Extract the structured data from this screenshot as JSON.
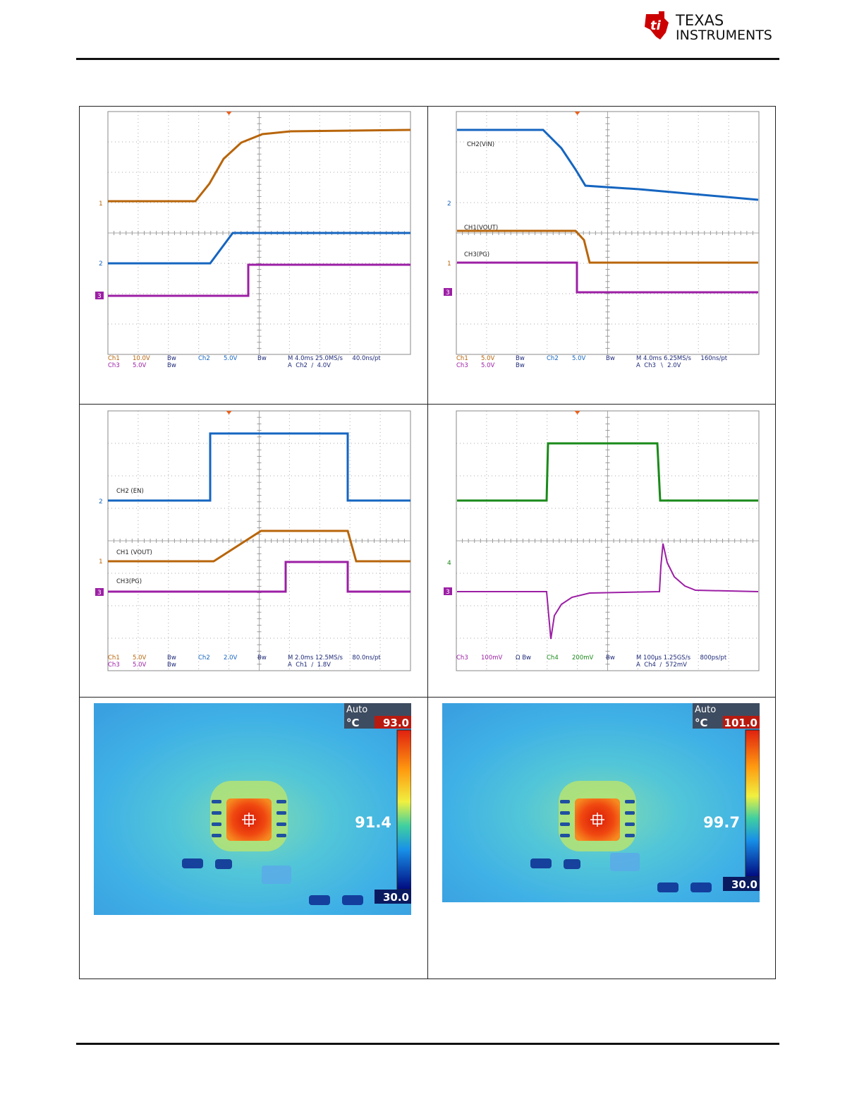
{
  "header": {
    "logo_line1": "TEXAS",
    "logo_line2": "INSTRUMENTS"
  },
  "scopes": [
    {
      "markers": [
        "1",
        "2",
        "3"
      ],
      "readout": {
        "channels": [
          [
            "Ch1",
            "10.0V",
            "Bw"
          ],
          [
            "Ch2",
            "5.0V",
            "Bw"
          ],
          [
            "Ch3",
            "5.0V",
            "Bw"
          ]
        ],
        "timebase": "M 4.0ms 25.0MS/s     40.0ns/pt",
        "trigger": "A  Ch2  ∕  4.0V"
      }
    },
    {
      "labels": [
        "CH2(VIN)",
        "CH1(VOUT)",
        "CH3(PG)"
      ],
      "markers": [
        "2",
        "1",
        "3"
      ],
      "readout": {
        "channels": [
          [
            "Ch1",
            "5.0V",
            "Bw"
          ],
          [
            "Ch2",
            "5.0V",
            "Bw"
          ],
          [
            "Ch3",
            "5.0V",
            "Bw"
          ]
        ],
        "timebase": "M 4.0ms 6.25MS/s     160ns/pt",
        "trigger": "A  Ch3  ∖  2.0V"
      }
    },
    {
      "labels": [
        "CH2 (EN)",
        "CH1 (VOUT)",
        "CH3(PG)"
      ],
      "markers": [
        "2",
        "1",
        "3"
      ],
      "readout": {
        "channels": [
          [
            "Ch1",
            "5.0V",
            "Bw"
          ],
          [
            "Ch2",
            "2.0V",
            "Bw"
          ],
          [
            "Ch3",
            "5.0V",
            "Bw"
          ]
        ],
        "timebase": "M 2.0ms 12.5MS/s     80.0ns/pt",
        "trigger": "A  Ch1  ∕  1.8V"
      }
    },
    {
      "markers": [
        "4",
        "3"
      ],
      "readout": {
        "channels": [
          [
            "Ch3",
            "100mV",
            "Ω  Bw"
          ],
          [
            "Ch4",
            "200mV",
            "Bw"
          ]
        ],
        "timebase": "M 100µs 1.25GS/s     800ps/pt",
        "trigger": "A  Ch4  ∕  572mV"
      }
    }
  ],
  "thermal": [
    {
      "mode": "Auto",
      "unit": "°C",
      "max": "93.0",
      "spot": "91.4",
      "min": "30.0"
    },
    {
      "mode": "Auto",
      "unit": "°C",
      "max": "101.0",
      "spot": "99.7",
      "min": "30.0"
    }
  ]
}
